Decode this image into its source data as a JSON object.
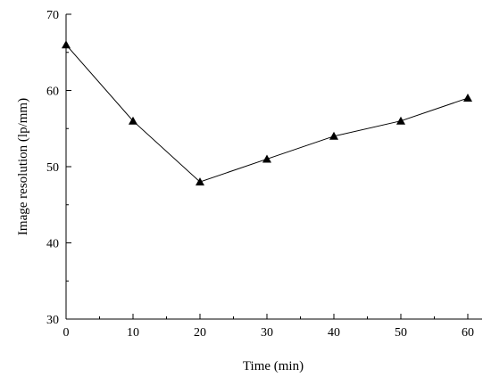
{
  "chart_data": {
    "type": "line",
    "title": "",
    "xlabel": "Time (min)",
    "ylabel": "Image resolution (lp/mm)",
    "xlim": [
      0,
      60
    ],
    "ylim": [
      30,
      70
    ],
    "x_ticks": [
      0,
      10,
      20,
      30,
      40,
      50,
      60
    ],
    "y_ticks": [
      30,
      40,
      50,
      60,
      70
    ],
    "grid": false,
    "legend": "none",
    "marker": "triangle",
    "line_color": "#000000",
    "series": [
      {
        "x": [
          0,
          10,
          20,
          30,
          40,
          50,
          60
        ],
        "y": [
          66,
          56,
          48,
          51,
          54,
          56,
          59
        ]
      }
    ]
  }
}
